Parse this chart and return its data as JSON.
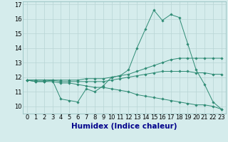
{
  "xlabel": "Humidex (Indice chaleur)",
  "x": [
    0,
    1,
    2,
    3,
    4,
    5,
    6,
    7,
    8,
    9,
    10,
    11,
    12,
    13,
    14,
    15,
    16,
    17,
    18,
    19,
    20,
    21,
    22,
    23
  ],
  "line1": [
    11.8,
    11.7,
    11.7,
    11.8,
    10.5,
    10.4,
    10.3,
    11.2,
    11.0,
    11.4,
    12.0,
    12.1,
    12.5,
    14.0,
    15.3,
    16.6,
    15.9,
    16.3,
    16.1,
    14.3,
    12.5,
    11.5,
    10.3,
    9.8
  ],
  "line2": [
    11.8,
    11.8,
    11.8,
    11.8,
    11.8,
    11.8,
    11.8,
    11.9,
    11.9,
    11.9,
    12.0,
    12.1,
    12.2,
    12.4,
    12.6,
    12.8,
    13.0,
    13.2,
    13.3,
    13.3,
    13.3,
    13.3,
    13.3,
    13.3
  ],
  "line3": [
    11.8,
    11.8,
    11.8,
    11.8,
    11.7,
    11.7,
    11.7,
    11.7,
    11.7,
    11.7,
    11.8,
    11.9,
    12.0,
    12.1,
    12.2,
    12.3,
    12.4,
    12.4,
    12.4,
    12.4,
    12.3,
    12.3,
    12.2,
    12.2
  ],
  "line4": [
    11.8,
    11.7,
    11.7,
    11.7,
    11.6,
    11.6,
    11.5,
    11.4,
    11.3,
    11.3,
    11.2,
    11.1,
    11.0,
    10.8,
    10.7,
    10.6,
    10.5,
    10.4,
    10.3,
    10.2,
    10.1,
    10.1,
    10.0,
    9.8
  ],
  "line_color": "#2e8b74",
  "bg_color": "#d5ecec",
  "grid_color": "#b8d4d4",
  "ylim": [
    9.5,
    17.2
  ],
  "yticks": [
    10,
    11,
    12,
    13,
    14,
    15,
    16,
    17
  ],
  "xticks": [
    0,
    1,
    2,
    3,
    4,
    5,
    6,
    7,
    8,
    9,
    10,
    11,
    12,
    13,
    14,
    15,
    16,
    17,
    18,
    19,
    20,
    21,
    22,
    23
  ],
  "xlabel_color": "#00008b",
  "xlabel_fontsize": 7.5,
  "tick_fontsize": 6.0
}
